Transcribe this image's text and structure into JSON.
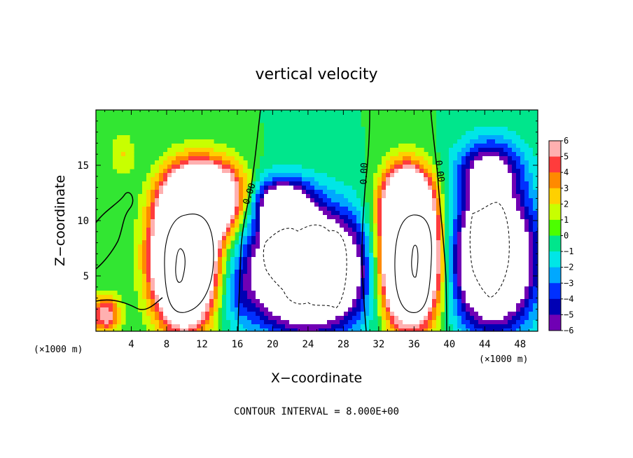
{
  "chart_data": {
    "type": "heatmap",
    "title": "vertical velocity",
    "xlabel": "X−coordinate",
    "ylabel": "Z−coordinate",
    "x_unit_left": "(×1000 m)",
    "x_unit_right": "(×1000 m)",
    "xlim": [
      0,
      50
    ],
    "ylim": [
      0,
      20
    ],
    "x_ticks": [
      4,
      8,
      12,
      16,
      20,
      24,
      28,
      32,
      36,
      40,
      44,
      48
    ],
    "y_ticks": [
      5,
      10,
      15
    ],
    "colorbar": {
      "ticks": [
        "6",
        "5",
        "4",
        "3",
        "2",
        "1",
        "0",
        "−1",
        "−2",
        "−3",
        "−4",
        "−5",
        "−6"
      ],
      "colors": [
        "#ffb0b0",
        "#ff3c3c",
        "#ff8a00",
        "#ffd000",
        "#c8ff00",
        "#4cff00",
        "#00e68c",
        "#00e6e6",
        "#00a8ff",
        "#0030ff",
        "#0000b4",
        "#7000b4"
      ]
    },
    "contour_label": "0.00",
    "contour_interval_text": "CONTOUR INTERVAL = 8.000E+00",
    "features": [
      {
        "sign": "up",
        "x": 10,
        "z": 7,
        "peak": 22
      },
      {
        "sign": "down",
        "x": 24,
        "z": 6,
        "peak": -16
      },
      {
        "sign": "up",
        "x": 35.5,
        "z": 7,
        "peak": 22
      },
      {
        "sign": "down",
        "x": 45,
        "z": 7,
        "peak": -14
      },
      {
        "sign": "up",
        "x": 1,
        "z": 1.5,
        "peak": 6
      },
      {
        "sign": "up",
        "x": 3,
        "z": 16,
        "peak": 2
      }
    ]
  }
}
